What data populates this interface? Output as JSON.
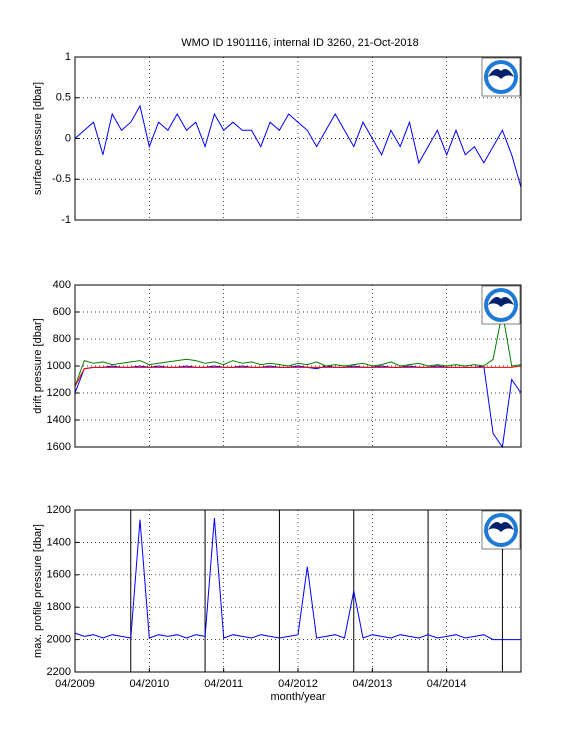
{
  "chart_data": [
    {
      "type": "line",
      "title": "WMO ID 1901116, internal ID 3260, 21-Oct-2018",
      "ylabel": "surface pressure [dbar]",
      "xlim": [
        2009.25,
        2015.25
      ],
      "ylim": [
        -1,
        1
      ],
      "yticks": [
        -1,
        -0.5,
        0,
        0.5,
        1
      ],
      "grid": true,
      "x": [
        2009.25,
        2009.375,
        2009.5,
        2009.625,
        2009.75,
        2009.875,
        2010,
        2010.125,
        2010.25,
        2010.375,
        2010.5,
        2010.625,
        2010.75,
        2010.875,
        2011,
        2011.125,
        2011.25,
        2011.375,
        2011.5,
        2011.625,
        2011.75,
        2011.875,
        2012,
        2012.125,
        2012.25,
        2012.375,
        2012.5,
        2012.625,
        2012.75,
        2012.875,
        2013,
        2013.125,
        2013.25,
        2013.375,
        2013.5,
        2013.625,
        2013.75,
        2013.875,
        2014,
        2014.125,
        2014.25,
        2014.375,
        2014.5,
        2014.625,
        2014.75,
        2014.875,
        2015,
        2015.125,
        2015.25
      ],
      "series": [
        {
          "color": "#0000ff",
          "values": [
            0,
            0.1,
            0.2,
            -0.2,
            0.3,
            0.1,
            0.2,
            0.4,
            -0.1,
            0.2,
            0.1,
            0.3,
            0.1,
            0.2,
            -0.1,
            0.3,
            0.1,
            0.2,
            0.1,
            0.1,
            -0.1,
            0.2,
            0.1,
            0.3,
            0.2,
            0.1,
            -0.1,
            0.1,
            0.3,
            0.1,
            -0.1,
            0.2,
            0,
            -0.2,
            0.1,
            -0.1,
            0.2,
            -0.3,
            -0.1,
            0.1,
            -0.2,
            0.1,
            -0.2,
            -0.1,
            -0.3,
            -0.1,
            0.1,
            -0.2,
            -0.6
          ]
        }
      ]
    },
    {
      "type": "line",
      "ylabel": "drift pressure [dbar]",
      "xlim": [
        2009.25,
        2015.25
      ],
      "ylim": [
        1600,
        400
      ],
      "yticks": [
        400,
        600,
        800,
        1000,
        1200,
        1400,
        1600
      ],
      "grid": true,
      "x": [
        2009.25,
        2009.375,
        2009.5,
        2009.625,
        2009.75,
        2009.875,
        2010,
        2010.125,
        2010.25,
        2010.375,
        2010.5,
        2010.625,
        2010.75,
        2010.875,
        2011,
        2011.125,
        2011.25,
        2011.375,
        2011.5,
        2011.625,
        2011.75,
        2011.875,
        2012,
        2012.125,
        2012.25,
        2012.375,
        2012.5,
        2012.625,
        2012.75,
        2012.875,
        2013,
        2013.125,
        2013.25,
        2013.375,
        2013.5,
        2013.625,
        2013.75,
        2013.875,
        2014,
        2014.125,
        2014.25,
        2014.375,
        2014.5,
        2014.625,
        2014.75,
        2014.875,
        2015,
        2015.125,
        2015.25
      ],
      "series": [
        {
          "color": "#0000ff",
          "values": [
            1200,
            1020,
            1010,
            1010,
            1000,
            1010,
            1010,
            1000,
            1010,
            1000,
            1010,
            1010,
            1000,
            1010,
            1010,
            1000,
            1010,
            1010,
            1000,
            1010,
            1010,
            1000,
            1010,
            1010,
            1000,
            1010,
            1020,
            1000,
            1010,
            1010,
            1000,
            1010,
            1010,
            1000,
            1010,
            1010,
            1000,
            1010,
            1010,
            1000,
            1010,
            1010,
            1010,
            1010,
            1000,
            1500,
            1600,
            1100,
            1200
          ]
        },
        {
          "color": "#008000",
          "values": [
            1150,
            960,
            980,
            970,
            990,
            980,
            970,
            960,
            990,
            980,
            970,
            960,
            950,
            960,
            980,
            970,
            990,
            960,
            980,
            970,
            990,
            980,
            990,
            1000,
            980,
            990,
            970,
            1000,
            990,
            1000,
            990,
            980,
            1000,
            990,
            970,
            1000,
            990,
            980,
            1000,
            990,
            1000,
            990,
            1000,
            990,
            1000,
            950,
            600,
            1000,
            990
          ]
        },
        {
          "color": "#ff0000",
          "values": [
            1150,
            1020,
            1010,
            1010,
            1010,
            1010,
            1010,
            1010,
            1010,
            1010,
            1010,
            1010,
            1010,
            1010,
            1010,
            1010,
            1010,
            1010,
            1010,
            1010,
            1010,
            1010,
            1010,
            1010,
            1010,
            1010,
            1010,
            1010,
            1010,
            1010,
            1010,
            1010,
            1010,
            1010,
            1010,
            1010,
            1010,
            1010,
            1010,
            1010,
            1010,
            1010,
            1010,
            1010,
            1010,
            1010,
            1010,
            1010,
            1000
          ]
        }
      ]
    },
    {
      "type": "line",
      "ylabel": "max. profile pressure [dbar]",
      "xlabel": "month/year",
      "xlim": [
        2009.25,
        2015.25
      ],
      "ylim": [
        2200,
        1200
      ],
      "yticks": [
        1200,
        1400,
        1600,
        1800,
        2000,
        2200
      ],
      "grid": true,
      "xticks": [
        {
          "value": 2009.25,
          "label": "04/2009"
        },
        {
          "value": 2010.25,
          "label": "04/2010"
        },
        {
          "value": 2011.25,
          "label": "04/2011"
        },
        {
          "value": 2012.25,
          "label": "04/2012"
        },
        {
          "value": 2013.25,
          "label": "04/2013"
        },
        {
          "value": 2014.25,
          "label": "04/2014"
        }
      ],
      "vlines": [
        2010,
        2011,
        2012,
        2013,
        2014,
        2015
      ],
      "x": [
        2009.25,
        2009.375,
        2009.5,
        2009.625,
        2009.75,
        2009.875,
        2010,
        2010.125,
        2010.25,
        2010.375,
        2010.5,
        2010.625,
        2010.75,
        2010.875,
        2011,
        2011.125,
        2011.25,
        2011.375,
        2011.5,
        2011.625,
        2011.75,
        2011.875,
        2012,
        2012.125,
        2012.25,
        2012.375,
        2012.5,
        2012.625,
        2012.75,
        2012.875,
        2013,
        2013.125,
        2013.25,
        2013.375,
        2013.5,
        2013.625,
        2013.75,
        2013.875,
        2014,
        2014.125,
        2014.25,
        2014.375,
        2014.5,
        2014.625,
        2014.75,
        2014.875,
        2015,
        2015.125,
        2015.25
      ],
      "series": [
        {
          "color": "#0000ff",
          "values": [
            1960,
            1980,
            1970,
            1990,
            1970,
            1980,
            1990,
            1260,
            1990,
            1970,
            1980,
            1970,
            1990,
            1970,
            1980,
            1250,
            1990,
            1970,
            1980,
            1990,
            1970,
            1980,
            1990,
            1980,
            1970,
            1550,
            1990,
            1980,
            1970,
            1990,
            1700,
            1990,
            1970,
            1980,
            1990,
            1970,
            1980,
            1990,
            1970,
            1990,
            1980,
            1970,
            1990,
            1980,
            1970,
            2000,
            2000,
            2000,
            2000
          ]
        }
      ]
    }
  ]
}
